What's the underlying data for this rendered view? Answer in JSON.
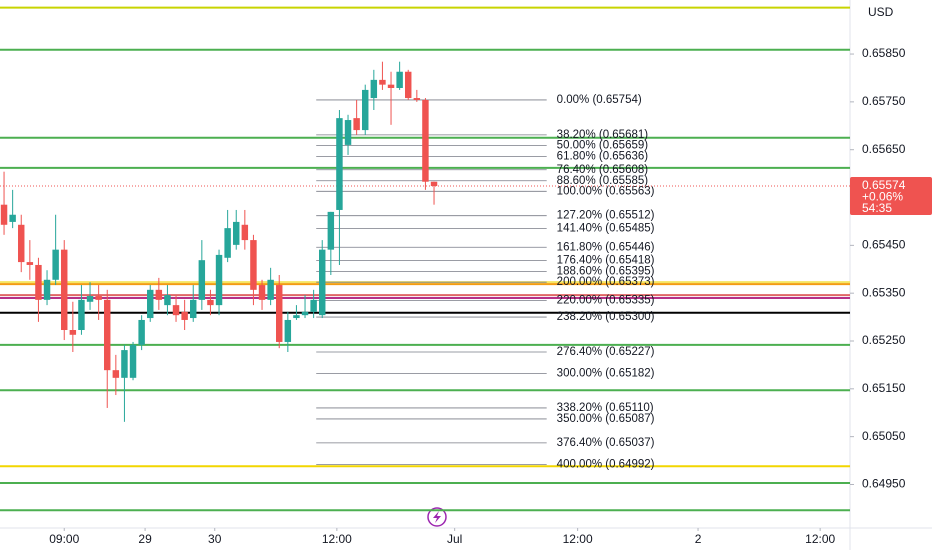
{
  "chart_data": {
    "type": "candlestick",
    "currency": "USD",
    "up_color": "#26a69a",
    "down_color": "#ef5350",
    "x": [
      0,
      1,
      2,
      3,
      4,
      5,
      6,
      7,
      8,
      9,
      10,
      11,
      12,
      13,
      14,
      15,
      16,
      17,
      18,
      19,
      20,
      21,
      22,
      23,
      24,
      25,
      26,
      27,
      28,
      29,
      30,
      31,
      32,
      33,
      34,
      35,
      36,
      37,
      38,
      39,
      40,
      41,
      42,
      43,
      44,
      45,
      46,
      47,
      48,
      49,
      50
    ],
    "open": [
      0.65535,
      0.65499,
      0.65493,
      0.65415,
      0.65409,
      0.65336,
      0.65378,
      0.65441,
      0.65273,
      0.65273,
      0.65332,
      0.65344,
      0.65336,
      0.65189,
      0.65173,
      0.65173,
      0.65242,
      0.65298,
      0.65357,
      0.65325,
      0.65325,
      0.65311,
      0.65298,
      0.65336,
      0.65336,
      0.65325,
      0.65424,
      0.65451,
      0.65493,
      0.65461,
      0.65367,
      0.65336,
      0.65367,
      0.65248,
      0.65298,
      0.65304,
      0.65311,
      0.65304,
      0.65441,
      0.65524,
      0.6566,
      0.65716,
      0.65691,
      0.65758,
      0.65796,
      0.65786,
      0.65779,
      0.65813,
      0.65758,
      0.65754,
      0.65583
    ],
    "high": [
      0.65604,
      0.65566,
      0.65514,
      0.65461,
      0.65424,
      0.65398,
      0.65514,
      0.65461,
      0.65332,
      0.65367,
      0.65373,
      0.65367,
      0.65357,
      0.65221,
      0.65242,
      0.65248,
      0.65304,
      0.65367,
      0.65382,
      0.65367,
      0.65344,
      0.65336,
      0.65367,
      0.65461,
      0.65357,
      0.65441,
      0.65524,
      0.65524,
      0.65524,
      0.65472,
      0.65378,
      0.65403,
      0.65388,
      0.65311,
      0.65325,
      0.65346,
      0.65357,
      0.65461,
      0.6552,
      0.65733,
      0.65723,
      0.65754,
      0.65786,
      0.65817,
      0.65834,
      0.65813,
      0.65834,
      0.65817,
      0.65775,
      0.65758,
      0.65583
    ],
    "low": [
      0.65472,
      0.65486,
      0.65394,
      0.65378,
      0.6529,
      0.65325,
      0.65367,
      0.65252,
      0.65227,
      0.65263,
      0.65315,
      0.65294,
      0.6511,
      0.65137,
      0.65081,
      0.65168,
      0.65231,
      0.6529,
      0.65315,
      0.65304,
      0.6529,
      0.65273,
      0.6529,
      0.65315,
      0.65304,
      0.65304,
      0.65415,
      0.65441,
      0.65441,
      0.65325,
      0.65315,
      0.65325,
      0.65235,
      0.65227,
      0.65294,
      0.65298,
      0.65298,
      0.65298,
      0.65388,
      0.65409,
      0.65639,
      0.65681,
      0.65681,
      0.65733,
      0.65775,
      0.65702,
      0.65775,
      0.65754,
      0.6575,
      0.65566,
      0.65535
    ],
    "close": [
      0.65493,
      0.65514,
      0.65415,
      0.65409,
      0.65336,
      0.65378,
      0.65441,
      0.65273,
      0.65263,
      0.65336,
      0.65344,
      0.65336,
      0.65189,
      0.65173,
      0.65231,
      0.65242,
      0.65294,
      0.65357,
      0.65336,
      0.65346,
      0.65304,
      0.65294,
      0.65336,
      0.65419,
      0.65325,
      0.6543,
      0.65486,
      0.65499,
      0.65461,
      0.65357,
      0.65336,
      0.65378,
      0.65248,
      0.65294,
      0.65304,
      0.65311,
      0.65336,
      0.65441,
      0.6552,
      0.65716,
      0.65712,
      0.65691,
      0.65775,
      0.65796,
      0.65786,
      0.65779,
      0.65813,
      0.65758,
      0.65754,
      0.65583,
      0.65574
    ],
    "xlim": [
      -0.47,
      98.37
    ],
    "xticks": [
      {
        "value": 7,
        "label": "09:00"
      },
      {
        "value": 16.4,
        "label": "29"
      },
      {
        "value": 24.5,
        "label": "30"
      },
      {
        "value": 38.7,
        "label": "12:00"
      },
      {
        "value": 52.4,
        "label": "Jul"
      },
      {
        "value": 66.7,
        "label": "12:00"
      },
      {
        "value": 80.7,
        "label": "2"
      },
      {
        "value": 94.9,
        "label": "12:00"
      }
    ],
    "ylim": [
      0.64859,
      0.65963
    ],
    "yticks": [
      {
        "value": 0.6585,
        "label": "0.65850"
      },
      {
        "value": 0.6575,
        "label": "0.65750"
      },
      {
        "value": 0.6565,
        "label": "0.65650"
      },
      {
        "value": 0.6545,
        "label": "0.65450"
      },
      {
        "value": 0.6535,
        "label": "0.65350"
      },
      {
        "value": 0.6525,
        "label": "0.65250"
      },
      {
        "value": 0.6515,
        "label": "0.65150"
      },
      {
        "value": 0.6505,
        "label": "0.65050"
      },
      {
        "value": 0.6495,
        "label": "0.64950"
      }
    ],
    "last_price": {
      "value": 0.65574,
      "label": "0.65574",
      "change": "+0.06%",
      "countdown": "54:35",
      "color": "#ef5350"
    },
    "levels": [
      {
        "value": 0.65947,
        "color": "#c8d400"
      },
      {
        "value": 0.65859,
        "color": "#4caf50"
      },
      {
        "value": 0.65675,
        "color": "#4caf50"
      },
      {
        "value": 0.65612,
        "color": "#4caf50"
      },
      {
        "value": 0.65373,
        "color": "#f5e663"
      },
      {
        "value": 0.65369,
        "color": "#f39c12"
      },
      {
        "value": 0.65346,
        "color": "#e06666"
      },
      {
        "value": 0.6534,
        "color": "#b4308a"
      },
      {
        "value": 0.65309,
        "color": "#000000"
      },
      {
        "value": 0.65242,
        "color": "#4caf50"
      },
      {
        "value": 0.65147,
        "color": "#4caf50"
      },
      {
        "value": 0.64988,
        "color": "#f2d600"
      },
      {
        "value": 0.64953,
        "color": "#4caf50"
      },
      {
        "value": 0.64896,
        "color": "#4caf50"
      }
    ],
    "fib": {
      "x_range": [
        36.3,
        63.1
      ],
      "color": "#787b86",
      "levels": [
        {
          "value": 0.65754,
          "label": "0.00% (0.65754)"
        },
        {
          "value": 0.65681,
          "label": "38.20% (0.65681)"
        },
        {
          "value": 0.65659,
          "label": "50.00% (0.65659)"
        },
        {
          "value": 0.65636,
          "label": "61.80% (0.65636)"
        },
        {
          "value": 0.65608,
          "label": "76.40% (0.65608)"
        },
        {
          "value": 0.65585,
          "label": "88.60% (0.65585)"
        },
        {
          "value": 0.65563,
          "label": "100.00% (0.65563)"
        },
        {
          "value": 0.65512,
          "label": "127.20% (0.65512)"
        },
        {
          "value": 0.65485,
          "label": "141.40% (0.65485)"
        },
        {
          "value": 0.65446,
          "label": "161.80% (0.65446)"
        },
        {
          "value": 0.65418,
          "label": "176.40% (0.65418)"
        },
        {
          "value": 0.65395,
          "label": "188.60% (0.65395)"
        },
        {
          "value": 0.65373,
          "label": "200.00% (0.65373)"
        },
        {
          "value": 0.65335,
          "label": "220.00% (0.65335)"
        },
        {
          "value": 0.653,
          "label": "238.20% (0.65300)"
        },
        {
          "value": 0.65227,
          "label": "276.40% (0.65227)"
        },
        {
          "value": 0.65182,
          "label": "300.00% (0.65182)"
        },
        {
          "value": 0.6511,
          "label": "338.20% (0.65110)"
        },
        {
          "value": 0.65087,
          "label": "350.00% (0.65087)"
        },
        {
          "value": 0.65037,
          "label": "376.40% (0.65037)"
        },
        {
          "value": 0.64992,
          "label": "400.00% (0.64992)"
        }
      ]
    }
  }
}
